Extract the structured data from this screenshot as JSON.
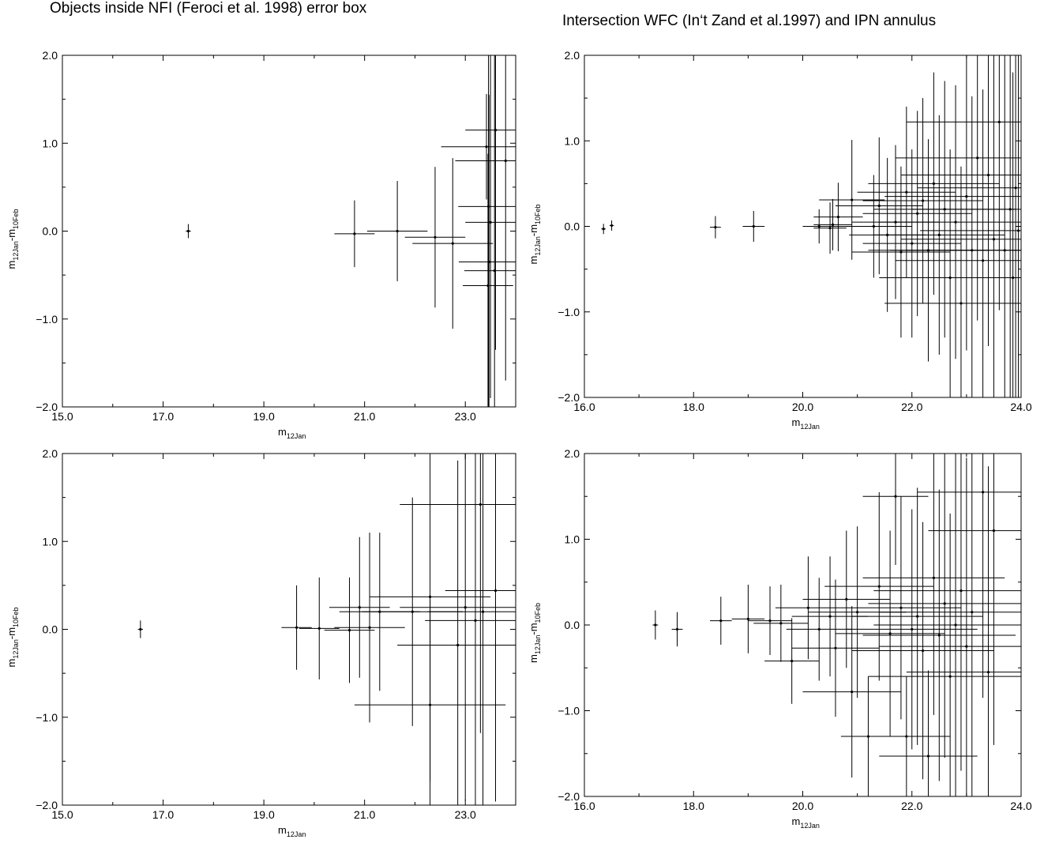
{
  "titles": {
    "left": "Objects inside NFI (Feroci et al. 1998) error box",
    "right": "Intersection WFC (In‘t Zand et al.1997) and IPN annulus"
  },
  "chart_data": [
    {
      "type": "scatter",
      "xlabel": {
        "base": "m",
        "sub": "12Jan"
      },
      "ylabel": {
        "parts": [
          {
            "t": "m"
          },
          {
            "t": "12Jan",
            "sub": true
          },
          {
            "t": "-m"
          },
          {
            "t": "10Feb",
            "sub": true
          }
        ]
      },
      "xlim": [
        15,
        24
      ],
      "ylim": [
        -2,
        2
      ],
      "xticks": [
        15,
        17,
        19,
        21,
        23
      ],
      "xtick_labels": [
        "15.0",
        "17.0",
        "19.0",
        "21.0",
        "23.0"
      ],
      "yticks": [
        -2,
        -1,
        0,
        1,
        2
      ],
      "ytick_labels": [
        "−2.0",
        "−1.0",
        "0.0",
        "1.0",
        "2.0"
      ],
      "grid": false,
      "error_bars": true,
      "points": [
        {
          "x": 17.5,
          "y": 0.0,
          "xerr": 0.05,
          "yerr": 0.08
        },
        {
          "x": 20.8,
          "y": -0.03,
          "xerr": 0.4,
          "yerr": 0.38
        },
        {
          "x": 21.65,
          "y": 0.0,
          "xerr": 0.6,
          "yerr": 0.57
        },
        {
          "x": 22.4,
          "y": -0.07,
          "xerr": 0.6,
          "yerr": 0.8
        },
        {
          "x": 22.75,
          "y": -0.14,
          "xerr": 0.8,
          "yerr": 0.97
        },
        {
          "x": 23.42,
          "y": 0.96,
          "xerr": 0.9,
          "yerr": 0.6
        },
        {
          "x": 23.46,
          "y": 0.28,
          "xerr": 0.6,
          "yerr": 2.3
        },
        {
          "x": 23.47,
          "y": -0.35,
          "xerr": 0.6,
          "yerr": 1.9
        },
        {
          "x": 23.45,
          "y": -0.62,
          "xerr": 0.5,
          "yerr": 1.5
        },
        {
          "x": 23.6,
          "y": 1.15,
          "xerr": 0.6,
          "yerr": 2.5
        },
        {
          "x": 23.58,
          "y": -0.45,
          "xerr": 0.6,
          "yerr": 2.5
        },
        {
          "x": 23.8,
          "y": 0.8,
          "xerr": 1.0,
          "yerr": 2.5
        },
        {
          "x": 23.5,
          "y": 0.1,
          "xerr": 0.5,
          "yerr": 2.0
        }
      ]
    },
    {
      "type": "scatter",
      "xlabel": {
        "base": "m",
        "sub": "12Jan"
      },
      "ylabel": {
        "parts": [
          {
            "t": "m"
          },
          {
            "t": "12Jan",
            "sub": true
          },
          {
            "t": "-m"
          },
          {
            "t": "10Feb",
            "sub": true
          }
        ]
      },
      "xlim": [
        16,
        24
      ],
      "ylim": [
        -2,
        2
      ],
      "xticks": [
        16,
        18,
        20,
        22,
        24
      ],
      "xtick_labels": [
        "16.0",
        "18.0",
        "20.0",
        "22.0",
        "24.0"
      ],
      "yticks": [
        -2,
        -1,
        0,
        1,
        2
      ],
      "ytick_labels": [
        "−2.0",
        "−1.0",
        "0.0",
        "1.0",
        "2.0"
      ],
      "grid": false,
      "error_bars": true,
      "points": [
        {
          "x": 16.35,
          "y": -0.03,
          "xerr": 0.04,
          "yerr": 0.06
        },
        {
          "x": 16.5,
          "y": 0.01,
          "xerr": 0.04,
          "yerr": 0.06
        },
        {
          "x": 18.4,
          "y": -0.01,
          "xerr": 0.1,
          "yerr": 0.13
        },
        {
          "x": 19.1,
          "y": 0.0,
          "xerr": 0.2,
          "yerr": 0.18
        },
        {
          "x": 20.3,
          "y": 0.0,
          "xerr": 0.3,
          "yerr": 0.2
        },
        {
          "x": 20.5,
          "y": -0.02,
          "xerr": 0.3,
          "yerr": 0.3
        },
        {
          "x": 20.55,
          "y": 0.02,
          "xerr": 0.35,
          "yerr": 0.3
        },
        {
          "x": 20.65,
          "y": 0.11,
          "xerr": 0.45,
          "yerr": 0.4
        },
        {
          "x": 20.9,
          "y": 0.31,
          "xerr": 0.6,
          "yerr": 0.7
        },
        {
          "x": 21.3,
          "y": 0.0,
          "xerr": 0.7,
          "yerr": 0.6
        },
        {
          "x": 21.4,
          "y": 0.24,
          "xerr": 0.8,
          "yerr": 0.8
        },
        {
          "x": 21.55,
          "y": -0.1,
          "xerr": 0.7,
          "yerr": 0.9
        },
        {
          "x": 21.7,
          "y": 0.05,
          "xerr": 0.8,
          "yerr": 0.9
        },
        {
          "x": 21.8,
          "y": -0.3,
          "xerr": 0.9,
          "yerr": 1.0
        },
        {
          "x": 21.9,
          "y": 0.4,
          "xerr": 0.9,
          "yerr": 1.0
        },
        {
          "x": 22.0,
          "y": -0.2,
          "xerr": 0.9,
          "yerr": 1.1
        },
        {
          "x": 22.1,
          "y": 0.15,
          "xerr": 1.0,
          "yerr": 1.2
        },
        {
          "x": 22.2,
          "y": 0.3,
          "xerr": 1.1,
          "yerr": 1.2
        },
        {
          "x": 22.3,
          "y": -0.28,
          "xerr": 1.1,
          "yerr": 1.3
        },
        {
          "x": 22.4,
          "y": 0.5,
          "xerr": 1.2,
          "yerr": 1.3
        },
        {
          "x": 22.5,
          "y": -0.1,
          "xerr": 1.2,
          "yerr": 1.4
        },
        {
          "x": 22.6,
          "y": 0.2,
          "xerr": 1.3,
          "yerr": 1.5
        },
        {
          "x": 22.7,
          "y": -0.6,
          "xerr": 1.3,
          "yerr": 1.5
        },
        {
          "x": 22.8,
          "y": 0.05,
          "xerr": 1.4,
          "yerr": 1.6
        },
        {
          "x": 22.9,
          "y": -0.9,
          "xerr": 1.4,
          "yerr": 1.6
        },
        {
          "x": 23.0,
          "y": 0.35,
          "xerr": 1.5,
          "yerr": 1.8
        },
        {
          "x": 23.1,
          "y": -0.28,
          "xerr": 1.5,
          "yerr": 1.8
        },
        {
          "x": 23.2,
          "y": 0.8,
          "xerr": 1.5,
          "yerr": 1.9
        },
        {
          "x": 23.3,
          "y": -0.4,
          "xerr": 1.6,
          "yerr": 2.0
        },
        {
          "x": 23.4,
          "y": 0.6,
          "xerr": 1.6,
          "yerr": 2.0
        },
        {
          "x": 23.5,
          "y": -0.15,
          "xerr": 1.7,
          "yerr": 2.2
        },
        {
          "x": 23.6,
          "y": 1.22,
          "xerr": 1.7,
          "yerr": 2.2
        },
        {
          "x": 23.7,
          "y": -0.28,
          "xerr": 1.8,
          "yerr": 2.3
        },
        {
          "x": 23.8,
          "y": 0.2,
          "xerr": 1.8,
          "yerr": 2.4
        },
        {
          "x": 23.85,
          "y": -0.6,
          "xerr": 1.8,
          "yerr": 2.4
        },
        {
          "x": 23.9,
          "y": 0.45,
          "xerr": 1.8,
          "yerr": 2.5
        },
        {
          "x": 23.95,
          "y": -0.05,
          "xerr": 1.8,
          "yerr": 2.5
        }
      ]
    },
    {
      "type": "scatter",
      "xlabel": {
        "base": "m",
        "sub": "12Jan"
      },
      "ylabel": {
        "parts": [
          {
            "t": "m"
          },
          {
            "t": "12Jan",
            "sub": true
          },
          {
            "t": "-m"
          },
          {
            "t": "10Feb",
            "sub": true
          }
        ]
      },
      "xlim": [
        15,
        24
      ],
      "ylim": [
        -2,
        2
      ],
      "xticks": [
        15,
        17,
        19,
        21,
        23
      ],
      "xtick_labels": [
        "15.0",
        "17.0",
        "19.0",
        "21.0",
        "23.0"
      ],
      "yticks": [
        -2,
        -1,
        0,
        1,
        2
      ],
      "ytick_labels": [
        "−2.0",
        "−1.0",
        "0.0",
        "1.0",
        "2.0"
      ],
      "grid": false,
      "error_bars": true,
      "points": [
        {
          "x": 16.55,
          "y": 0.0,
          "xerr": 0.05,
          "yerr": 0.1
        },
        {
          "x": 19.65,
          "y": 0.02,
          "xerr": 0.3,
          "yerr": 0.48
        },
        {
          "x": 20.1,
          "y": 0.01,
          "xerr": 0.4,
          "yerr": 0.58
        },
        {
          "x": 20.7,
          "y": -0.01,
          "xerr": 0.5,
          "yerr": 0.6
        },
        {
          "x": 20.9,
          "y": 0.25,
          "xerr": 0.6,
          "yerr": 0.8
        },
        {
          "x": 21.1,
          "y": 0.02,
          "xerr": 0.7,
          "yerr": 1.08
        },
        {
          "x": 21.3,
          "y": 0.2,
          "xerr": 0.8,
          "yerr": 0.9
        },
        {
          "x": 21.95,
          "y": 0.2,
          "xerr": 1.0,
          "yerr": 1.3
        },
        {
          "x": 22.3,
          "y": 0.37,
          "xerr": 1.2,
          "yerr": 2.1
        },
        {
          "x": 22.3,
          "y": -0.86,
          "xerr": 1.5,
          "yerr": 1.2
        },
        {
          "x": 22.85,
          "y": -0.18,
          "xerr": 1.2,
          "yerr": 2.1
        },
        {
          "x": 23.0,
          "y": 0.25,
          "xerr": 1.3,
          "yerr": 2.2
        },
        {
          "x": 23.2,
          "y": 0.1,
          "xerr": 1.0,
          "yerr": 2.2
        },
        {
          "x": 23.3,
          "y": 1.42,
          "xerr": 1.6,
          "yerr": 2.6
        },
        {
          "x": 23.35,
          "y": 0.2,
          "xerr": 1.1,
          "yerr": 2.4
        },
        {
          "x": 23.6,
          "y": 0.44,
          "xerr": 1.0,
          "yerr": 2.4
        }
      ]
    },
    {
      "type": "scatter",
      "xlabel": {
        "base": "m",
        "sub": "12Jan"
      },
      "ylabel": {
        "parts": [
          {
            "t": "m"
          },
          {
            "t": "12Jan",
            "sub": true
          },
          {
            "t": "-m"
          },
          {
            "t": "10Feb",
            "sub": true
          }
        ]
      },
      "xlim": [
        16,
        24
      ],
      "ylim": [
        -2,
        2
      ],
      "xticks": [
        16,
        18,
        20,
        22,
        24
      ],
      "xtick_labels": [
        "16.0",
        "18.0",
        "20.0",
        "22.0",
        "24.0"
      ],
      "yticks": [
        -2,
        -1,
        0,
        1,
        2
      ],
      "ytick_labels": [
        "−2.0",
        "−1.0",
        "0.0",
        "1.0",
        "2.0"
      ],
      "grid": false,
      "error_bars": true,
      "points": [
        {
          "x": 17.3,
          "y": 0.0,
          "xerr": 0.05,
          "yerr": 0.17
        },
        {
          "x": 17.7,
          "y": -0.05,
          "xerr": 0.1,
          "yerr": 0.2
        },
        {
          "x": 18.5,
          "y": 0.05,
          "xerr": 0.2,
          "yerr": 0.28
        },
        {
          "x": 19.0,
          "y": 0.07,
          "xerr": 0.3,
          "yerr": 0.4
        },
        {
          "x": 19.4,
          "y": 0.05,
          "xerr": 0.4,
          "yerr": 0.4
        },
        {
          "x": 19.6,
          "y": 0.02,
          "xerr": 0.5,
          "yerr": 0.45
        },
        {
          "x": 19.8,
          "y": -0.42,
          "xerr": 0.5,
          "yerr": 0.5
        },
        {
          "x": 20.1,
          "y": 0.2,
          "xerr": 0.6,
          "yerr": 0.6
        },
        {
          "x": 20.3,
          "y": -0.05,
          "xerr": 0.6,
          "yerr": 0.6
        },
        {
          "x": 20.5,
          "y": 0.1,
          "xerr": 0.7,
          "yerr": 0.7
        },
        {
          "x": 20.6,
          "y": -0.27,
          "xerr": 0.8,
          "yerr": 0.8
        },
        {
          "x": 20.8,
          "y": 0.3,
          "xerr": 0.8,
          "yerr": 0.8
        },
        {
          "x": 20.9,
          "y": -0.78,
          "xerr": 0.9,
          "yerr": 1.0
        },
        {
          "x": 21.0,
          "y": 0.15,
          "xerr": 0.9,
          "yerr": 1.0
        },
        {
          "x": 21.2,
          "y": -1.3,
          "xerr": 0.5,
          "yerr": 0.7
        },
        {
          "x": 21.4,
          "y": 0.45,
          "xerr": 1.0,
          "yerr": 1.1
        },
        {
          "x": 21.6,
          "y": -0.1,
          "xerr": 1.0,
          "yerr": 1.2
        },
        {
          "x": 21.7,
          "y": 1.5,
          "xerr": 0.6,
          "yerr": 0.8
        },
        {
          "x": 21.8,
          "y": 0.2,
          "xerr": 1.1,
          "yerr": 1.3
        },
        {
          "x": 21.9,
          "y": -1.3,
          "xerr": 0.8,
          "yerr": 0.7
        },
        {
          "x": 22.0,
          "y": -0.05,
          "xerr": 1.2,
          "yerr": 1.4
        },
        {
          "x": 22.1,
          "y": 0.1,
          "xerr": 1.2,
          "yerr": 1.5
        },
        {
          "x": 22.2,
          "y": -0.3,
          "xerr": 1.3,
          "yerr": 1.5
        },
        {
          "x": 22.3,
          "y": -1.53,
          "xerr": 0.9,
          "yerr": 1.0
        },
        {
          "x": 22.4,
          "y": 0.55,
          "xerr": 1.3,
          "yerr": 1.6
        },
        {
          "x": 22.5,
          "y": -0.12,
          "xerr": 1.4,
          "yerr": 1.7
        },
        {
          "x": 22.6,
          "y": 0.25,
          "xerr": 1.4,
          "yerr": 1.8
        },
        {
          "x": 22.7,
          "y": -0.6,
          "xerr": 1.5,
          "yerr": 1.9
        },
        {
          "x": 22.8,
          "y": 0.0,
          "xerr": 1.5,
          "yerr": 2.0
        },
        {
          "x": 22.9,
          "y": 0.4,
          "xerr": 1.6,
          "yerr": 2.1
        },
        {
          "x": 23.0,
          "y": -0.25,
          "xerr": 1.6,
          "yerr": 2.2
        },
        {
          "x": 23.1,
          "y": 0.15,
          "xerr": 1.7,
          "yerr": 2.3
        },
        {
          "x": 23.3,
          "y": 1.55,
          "xerr": 1.2,
          "yerr": 2.4
        },
        {
          "x": 23.4,
          "y": -0.55,
          "xerr": 1.5,
          "yerr": 2.4
        },
        {
          "x": 23.5,
          "y": 1.1,
          "xerr": 1.2,
          "yerr": 2.5
        }
      ]
    }
  ]
}
